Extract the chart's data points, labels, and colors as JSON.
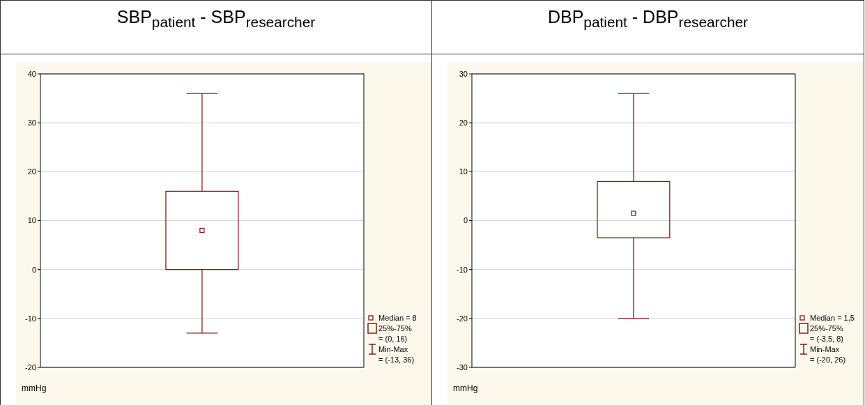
{
  "chart_data": [
    {
      "type": "box",
      "title": "SBP$_{patient}$ - SBP$_{researcher}$",
      "ylabel": "mmHg",
      "categories": [
        null
      ],
      "color": "#7b1f1f",
      "boxes": [
        {
          "low": -13,
          "q1": 0,
          "median": 8,
          "q3": 16,
          "high": 36
        }
      ],
      "ylim": [
        -20,
        40
      ],
      "yticks": [
        -20,
        -10,
        0,
        10,
        20,
        30,
        40
      ],
      "grid": "y",
      "annotations": [
        "Median = 8",
        "25%-75%",
        "= (0, 16)",
        "Min-Max",
        "= (-13, 36)"
      ]
    },
    {
      "type": "box",
      "title": "DBP$_{patient}$ - DBP$_{researcher}$",
      "ylabel": "mmHg",
      "categories": [
        null
      ],
      "color": "#7b1f1f",
      "boxes": [
        {
          "low": -20,
          "q1": -3.5,
          "median": 1.5,
          "q3": 8,
          "high": 26
        }
      ],
      "ylim": [
        -30,
        30
      ],
      "yticks": [
        -30,
        -20,
        -10,
        0,
        10,
        20,
        30
      ],
      "grid": "y",
      "annotations": [
        "Median = 1,5",
        "25%-75%",
        "= (-3,5, 8)",
        "Min-Max",
        "= (-20, 26)"
      ]
    }
  ]
}
